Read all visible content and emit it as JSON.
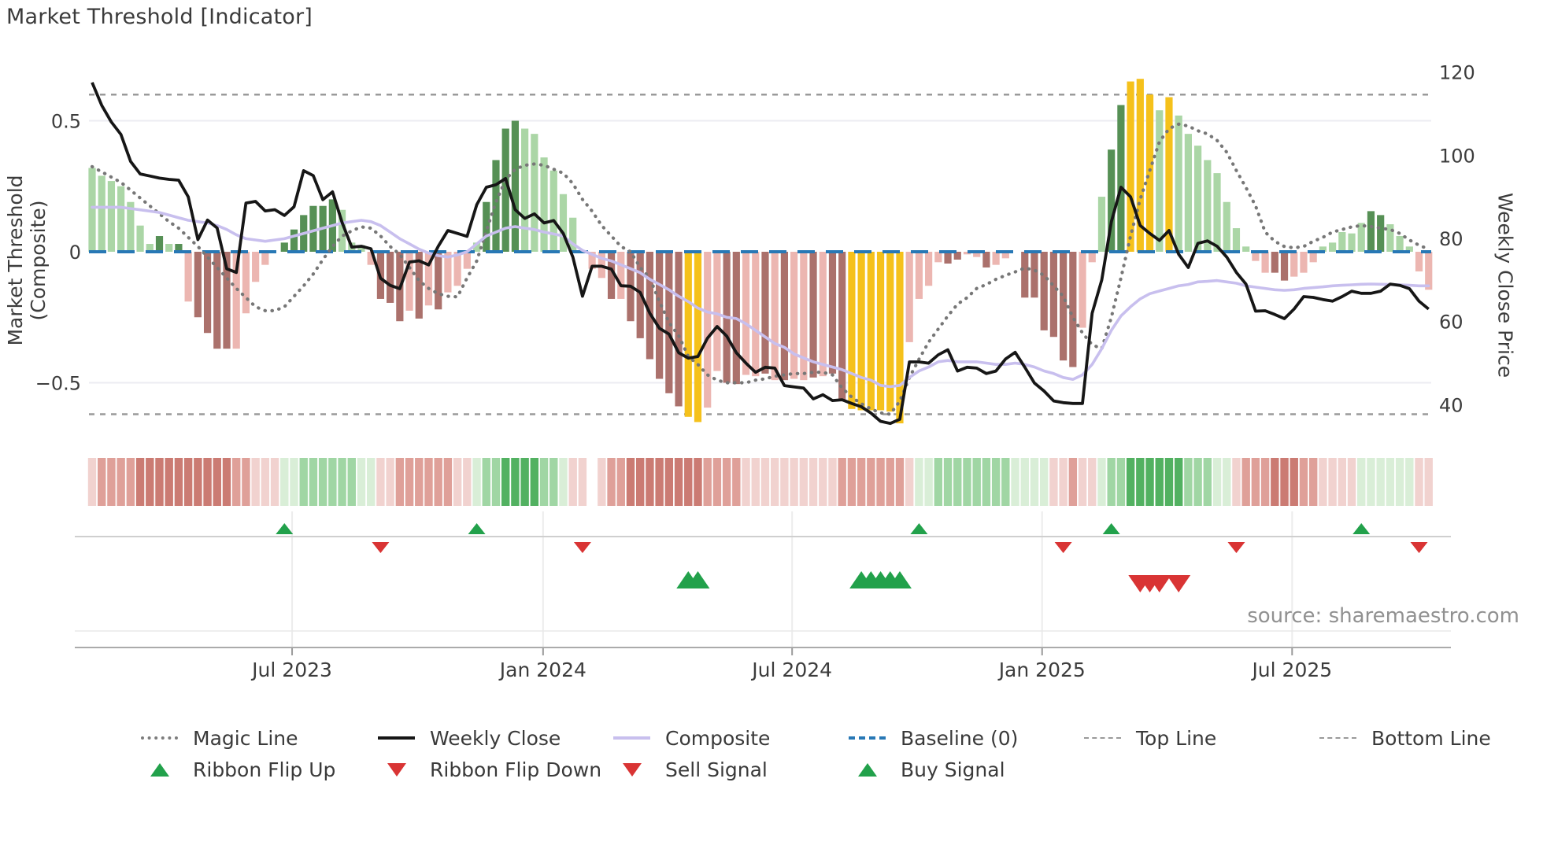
{
  "title": "Market Threshold [Indicator]",
  "source": "source: sharemaestro.com",
  "chart_data": {
    "type": "bar",
    "title": "Market Threshold [Indicator]",
    "ylabel_left": "Market Threshold (Composite)",
    "ylabel_right": "Weekly Close Price",
    "x_ticks": [
      {
        "label": "Jul 2023",
        "week": 20.8
      },
      {
        "label": "Jan 2024",
        "week": 46.9
      },
      {
        "label": "Jul 2024",
        "week": 72.8
      },
      {
        "label": "Jan 2025",
        "week": 98.8
      },
      {
        "label": "Jul 2025",
        "week": 124.8
      }
    ],
    "left_ticks": [
      {
        "label": "0.5",
        "value": 0.5
      },
      {
        "label": "0",
        "value": 0
      },
      {
        "label": "−0.5",
        "value": -0.5
      }
    ],
    "right_ticks": [
      {
        "label": "120",
        "price": 120
      },
      {
        "label": "100",
        "price": 100
      },
      {
        "label": "80",
        "price": 80
      },
      {
        "label": "60",
        "price": 60
      },
      {
        "label": "40",
        "price": 40
      }
    ],
    "left_axis_range": [
      -0.68,
      0.71
    ],
    "right_axis_range": [
      34,
      121
    ],
    "top_line": 0.6,
    "bottom_line": -0.62,
    "baseline": 0,
    "grid": "light horizontal at 0.5 and -0.5, light vertical below plot at month ticks",
    "legend_row1": [
      {
        "label": "Magic Line",
        "swatch": "magic"
      },
      {
        "label": "Weekly Close",
        "swatch": "close"
      },
      {
        "label": "Composite",
        "swatch": "composite"
      },
      {
        "label": "Baseline (0)",
        "swatch": "baseline"
      },
      {
        "label": "Top Line",
        "swatch": "band"
      },
      {
        "label": "Bottom Line",
        "swatch": "band"
      }
    ],
    "legend_row2": [
      {
        "label": "Ribbon Flip Up",
        "swatch": "tri-up"
      },
      {
        "label": "Ribbon Flip Down",
        "swatch": "tri-down"
      },
      {
        "label": "Sell Signal",
        "swatch": "tri-down"
      },
      {
        "label": "Buy Signal",
        "swatch": "tri-up"
      }
    ],
    "palette": {
      "bar_green_light": "#abd6a6",
      "bar_green_dark": "#569055",
      "bar_yellow": "#f5c11b",
      "bar_pink": "#ecb6b1",
      "bar_maroon": "#ab716c",
      "weekly_close": "#161616",
      "composite": "#c8bfee",
      "magic_line": "#777777",
      "baseline": "#2878b5",
      "top_bottom_line": "#9a9a9a",
      "signal_green": "#22a14b",
      "signal_red": "#d93434",
      "ribbon_red_light": "#f1d2cf",
      "ribbon_red_mid": "#dfa099",
      "ribbon_red_dark": "#cb7b73",
      "ribbon_green_light": "#d9eed7",
      "ribbon_green_mid": "#a0d6a4",
      "ribbon_green_dark": "#52b161"
    },
    "bars": {
      "values": [
        0.32,
        0.29,
        0.27,
        0.25,
        0.19,
        0.1,
        0.03,
        0.06,
        0.03,
        0.03,
        -0.19,
        -0.25,
        -0.31,
        -0.37,
        -0.37,
        -0.37,
        -0.235,
        -0.115,
        -0.05,
        0.01,
        0.035,
        0.085,
        0.14,
        0.175,
        0.175,
        0.2,
        0.16,
        0.035,
        0.025,
        -0.05,
        -0.18,
        -0.195,
        -0.265,
        -0.225,
        -0.255,
        -0.205,
        -0.22,
        -0.155,
        -0.13,
        -0.065,
        0.035,
        0.19,
        0.35,
        0.47,
        0.5,
        0.47,
        0.45,
        0.36,
        0.31,
        0.22,
        0.13,
        0.01,
        -0.065,
        -0.1,
        -0.18,
        -0.18,
        -0.265,
        -0.33,
        -0.41,
        -0.485,
        -0.54,
        -0.59,
        -0.63,
        -0.65,
        -0.595,
        -0.455,
        -0.5,
        -0.505,
        -0.47,
        -0.475,
        -0.465,
        -0.49,
        -0.49,
        -0.485,
        -0.49,
        -0.48,
        -0.475,
        -0.465,
        -0.57,
        -0.6,
        -0.605,
        -0.605,
        -0.605,
        -0.61,
        -0.655,
        -0.345,
        -0.18,
        -0.13,
        -0.04,
        -0.045,
        -0.03,
        -0.01,
        -0.02,
        -0.06,
        -0.05,
        -0.025,
        0,
        -0.175,
        -0.175,
        -0.3,
        -0.325,
        -0.415,
        -0.44,
        -0.29,
        -0.04,
        0.21,
        0.39,
        0.56,
        0.65,
        0.66,
        0.6,
        0.54,
        0.59,
        0.52,
        0.45,
        0.405,
        0.35,
        0.3,
        0.19,
        0.09,
        0.02,
        -0.035,
        -0.08,
        -0.08,
        -0.11,
        -0.095,
        -0.08,
        -0.04,
        0.02,
        0.035,
        0.075,
        0.07,
        0.11,
        0.155,
        0.14,
        0.105,
        0.06,
        0.02,
        -0.075,
        -0.145
      ],
      "colors": [
        "g",
        "g",
        "g",
        "g",
        "g",
        "g",
        "g",
        "G",
        "g",
        "G",
        "r",
        "R",
        "R",
        "R",
        "R",
        "r",
        "r",
        "r",
        "r",
        "n",
        "G",
        "G",
        "G",
        "G",
        "G",
        "G",
        "g",
        "g",
        "g",
        "r",
        "R",
        "R",
        "R",
        "r",
        "R",
        "r",
        "R",
        "r",
        "r",
        "r",
        "g",
        "G",
        "G",
        "G",
        "G",
        "g",
        "g",
        "g",
        "g",
        "g",
        "g",
        "n",
        "r",
        "r",
        "R",
        "r",
        "R",
        "R",
        "R",
        "R",
        "R",
        "R",
        "y",
        "y",
        "r",
        "r",
        "R",
        "R",
        "r",
        "r",
        "R",
        "r",
        "R",
        "r",
        "r",
        "R",
        "r",
        "R",
        "R",
        "y",
        "y",
        "y",
        "y",
        "y",
        "y",
        "r",
        "r",
        "r",
        "r",
        "R",
        "R",
        "r",
        "r",
        "R",
        "r",
        "r",
        "n",
        "R",
        "R",
        "R",
        "R",
        "R",
        "R",
        "r",
        "r",
        "g",
        "G",
        "G",
        "y",
        "y",
        "y",
        "g",
        "y",
        "g",
        "g",
        "g",
        "g",
        "g",
        "g",
        "g",
        "g",
        "r",
        "r",
        "R",
        "R",
        "r",
        "r",
        "r",
        "g",
        "g",
        "g",
        "g",
        "g",
        "G",
        "G",
        "g",
        "g",
        "g",
        "r",
        "r"
      ]
    },
    "weekly_close": [
      117.5,
      112,
      108,
      105,
      98.5,
      95.5,
      95,
      94.5,
      94.2,
      94,
      90,
      79.7,
      84.4,
      82.5,
      72.7,
      71.8,
      88.5,
      88.9,
      86.6,
      86.9,
      85.5,
      87.6,
      96.3,
      95.1,
      89.3,
      91.2,
      83.8,
      77.9,
      78.1,
      77.5,
      70.4,
      68.7,
      67.9,
      74.3,
      74.6,
      73.6,
      78.1,
      81.9,
      81.2,
      80.5,
      88.1,
      92.3,
      92.9,
      94.4,
      86.9,
      84.8,
      85.9,
      83.7,
      84.3,
      81.2,
      75.5,
      66.1,
      73.3,
      73.3,
      72.6,
      68.6,
      68.5,
      67,
      62,
      58.4,
      57,
      52.5,
      51.2,
      51.6,
      56,
      58.8,
      56.5,
      52.5,
      50,
      47.8,
      49,
      48.8,
      44.6,
      44.3,
      44,
      41.4,
      42.4,
      41,
      41.2,
      40.3,
      39.5,
      38,
      36,
      35.5,
      36.5,
      50.3,
      50.3,
      50,
      52,
      53.2,
      48.1,
      49,
      48.8,
      47.5,
      48.1,
      51,
      52.6,
      49,
      45.2,
      43.3,
      40.9,
      40.5,
      40.3,
      40.3,
      62,
      70,
      84,
      92.3,
      90,
      83.1,
      81.2,
      79.5,
      81.9,
      76.2,
      73,
      78.8,
      79.4,
      78.1,
      75.5,
      71.8,
      69,
      62.5,
      62.6,
      61.7,
      60.7,
      63,
      66,
      65.8,
      65.3,
      64.9,
      66,
      67.3,
      66.8,
      66.8,
      67.3,
      69,
      68.7,
      67.9,
      64.9,
      63
    ],
    "composite": [
      0.17,
      0.17,
      0.17,
      0.17,
      0.165,
      0.16,
      0.155,
      0.15,
      0.14,
      0.13,
      0.12,
      0.115,
      0.11,
      0.1,
      0.085,
      0.065,
      0.05,
      0.045,
      0.04,
      0.045,
      0.05,
      0.06,
      0.07,
      0.08,
      0.09,
      0.1,
      0.11,
      0.115,
      0.12,
      0.115,
      0.1,
      0.075,
      0.05,
      0.03,
      0.01,
      -0.005,
      -0.015,
      -0.02,
      -0.012,
      0,
      0.03,
      0.06,
      0.075,
      0.09,
      0.096,
      0.09,
      0.085,
      0.075,
      0.068,
      0.06,
      0.03,
      0.005,
      -0.01,
      -0.025,
      -0.035,
      -0.05,
      -0.065,
      -0.08,
      -0.105,
      -0.125,
      -0.145,
      -0.17,
      -0.19,
      -0.215,
      -0.23,
      -0.237,
      -0.25,
      -0.255,
      -0.275,
      -0.3,
      -0.325,
      -0.35,
      -0.365,
      -0.39,
      -0.405,
      -0.42,
      -0.43,
      -0.44,
      -0.45,
      -0.465,
      -0.48,
      -0.49,
      -0.51,
      -0.515,
      -0.51,
      -0.48,
      -0.455,
      -0.44,
      -0.42,
      -0.415,
      -0.42,
      -0.42,
      -0.42,
      -0.425,
      -0.43,
      -0.43,
      -0.425,
      -0.43,
      -0.44,
      -0.455,
      -0.465,
      -0.48,
      -0.487,
      -0.47,
      -0.43,
      -0.37,
      -0.3,
      -0.245,
      -0.21,
      -0.18,
      -0.16,
      -0.15,
      -0.14,
      -0.13,
      -0.125,
      -0.115,
      -0.113,
      -0.11,
      -0.115,
      -0.12,
      -0.13,
      -0.135,
      -0.14,
      -0.145,
      -0.147,
      -0.145,
      -0.14,
      -0.137,
      -0.134,
      -0.13,
      -0.128,
      -0.126,
      -0.124,
      -0.123,
      -0.124,
      -0.125,
      -0.126,
      -0.128,
      -0.13,
      -0.13
    ],
    "magic_line": [
      0.325,
      0.305,
      0.285,
      0.265,
      0.235,
      0.205,
      0.175,
      0.145,
      0.115,
      0.09,
      0.055,
      0.02,
      -0.02,
      -0.06,
      -0.1,
      -0.14,
      -0.175,
      -0.21,
      -0.225,
      -0.225,
      -0.21,
      -0.17,
      -0.13,
      -0.085,
      -0.03,
      0.02,
      0.06,
      0.08,
      0.095,
      0.09,
      0.06,
      0.02,
      -0.01,
      -0.06,
      -0.11,
      -0.14,
      -0.16,
      -0.17,
      -0.172,
      -0.1,
      -0.035,
      0.08,
      0.19,
      0.275,
      0.315,
      0.33,
      0.335,
      0.33,
      0.315,
      0.3,
      0.26,
      0.2,
      0.155,
      0.1,
      0.06,
      0.02,
      0,
      -0.06,
      -0.1,
      -0.19,
      -0.27,
      -0.32,
      -0.4,
      -0.43,
      -0.47,
      -0.49,
      -0.5,
      -0.5,
      -0.5,
      -0.49,
      -0.485,
      -0.475,
      -0.47,
      -0.465,
      -0.465,
      -0.46,
      -0.46,
      -0.47,
      -0.52,
      -0.555,
      -0.58,
      -0.6,
      -0.615,
      -0.62,
      -0.57,
      -0.48,
      -0.41,
      -0.345,
      -0.295,
      -0.245,
      -0.2,
      -0.175,
      -0.14,
      -0.125,
      -0.105,
      -0.09,
      -0.077,
      -0.062,
      -0.07,
      -0.09,
      -0.13,
      -0.17,
      -0.25,
      -0.31,
      -0.355,
      -0.37,
      -0.25,
      -0.1,
      0.06,
      0.2,
      0.31,
      0.42,
      0.47,
      0.487,
      0.48,
      0.462,
      0.45,
      0.425,
      0.38,
      0.31,
      0.245,
      0.175,
      0.075,
      0.04,
      0.02,
      0.015,
      0.02,
      0.04,
      0.055,
      0.075,
      0.085,
      0.095,
      0.1,
      0.096,
      0.09,
      0.085,
      0.07,
      0.045,
      0.025,
      0.01
    ],
    "ribbon": [
      "r1",
      "r2",
      "r2",
      "r2",
      "r2",
      "r3",
      "r3",
      "r3",
      "r3",
      "r3",
      "r3",
      "r3",
      "r3",
      "r3",
      "r3",
      "r2",
      "r2",
      "r1",
      "r1",
      "r1",
      "g1",
      "g1",
      "g2",
      "g2",
      "g2",
      "g2",
      "g2",
      "g2",
      "g1",
      "g1",
      "r1",
      "r1",
      "r2",
      "r2",
      "r2",
      "r2",
      "r2",
      "r2",
      "r1",
      "r1",
      "g1",
      "g2",
      "g2",
      "g3",
      "g3",
      "g3",
      "g3",
      "g2",
      "g2",
      "g1",
      "r1",
      "r1",
      "w",
      "r1",
      "r2",
      "r2",
      "r3",
      "r3",
      "r3",
      "r3",
      "r3",
      "r3",
      "r3",
      "r3",
      "r2",
      "r2",
      "r2",
      "r2",
      "r1",
      "r1",
      "r1",
      "r1",
      "r1",
      "r1",
      "r1",
      "r1",
      "r1",
      "r1",
      "r2",
      "r2",
      "r2",
      "r2",
      "r2",
      "r2",
      "r2",
      "r1",
      "g1",
      "g1",
      "g2",
      "g2",
      "g2",
      "g2",
      "g2",
      "g2",
      "g2",
      "g2",
      "g1",
      "g1",
      "g1",
      "g1",
      "r1",
      "r1",
      "r2",
      "r1",
      "r1",
      "g1",
      "g2",
      "g2",
      "g3",
      "g3",
      "g3",
      "g3",
      "g3",
      "g3",
      "g2",
      "g2",
      "g2",
      "g1",
      "g1",
      "r1",
      "r2",
      "r2",
      "r2",
      "r3",
      "r3",
      "r3",
      "r2",
      "r2",
      "r1",
      "r1",
      "r1",
      "r1",
      "g1",
      "g1",
      "g1",
      "g1",
      "g1",
      "g1",
      "r1",
      "r1"
    ],
    "signals": {
      "ribbon_flip_up_weeks": [
        20,
        40,
        86,
        106,
        132
      ],
      "ribbon_flip_down_weeks": [
        30,
        51,
        101,
        119,
        138
      ],
      "buy_weeks": [
        62,
        63,
        80,
        81,
        82,
        83,
        84
      ],
      "sell_weeks": [
        109,
        110,
        111,
        113
      ]
    }
  }
}
